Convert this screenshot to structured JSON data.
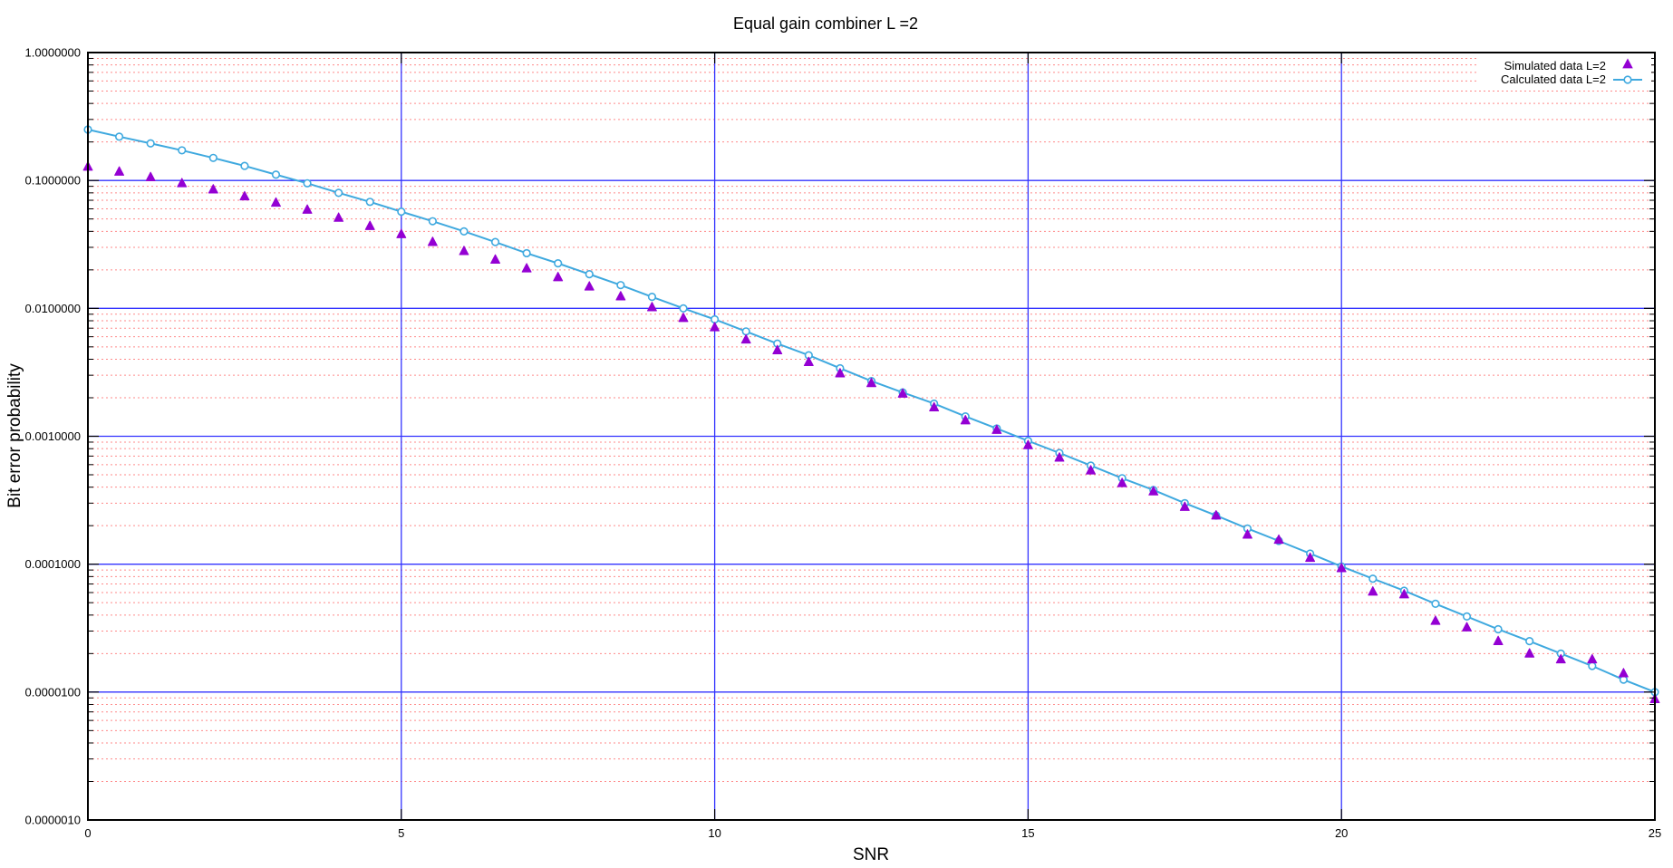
{
  "chart_data": {
    "type": "line",
    "title": "Equal gain combiner L =2",
    "xlabel": "SNR",
    "ylabel": "Bit error probability",
    "xlim": [
      0,
      25
    ],
    "ylim": [
      1e-06,
      1
    ],
    "y_scale": "log",
    "grid": true,
    "legend_position": "top-right",
    "x_ticks": [
      "0",
      "5",
      "10",
      "15",
      "20",
      "25"
    ],
    "y_ticks": [
      "1.0000000",
      "0.1000000",
      "0.0100000",
      "0.0010000",
      "0.0001000",
      "0.0000100",
      "0.0000010"
    ],
    "colors": {
      "major_grid": "#3333ff",
      "minor_grid": "#ff8a8a",
      "simulated": "#9400d3",
      "calculated": "#3fa9df"
    },
    "x": [
      0,
      0.5,
      1,
      1.5,
      2,
      2.5,
      3,
      3.5,
      4,
      4.5,
      5,
      5.5,
      6,
      6.5,
      7,
      7.5,
      8,
      8.5,
      9,
      9.5,
      10,
      10.5,
      11,
      11.5,
      12,
      12.5,
      13,
      13.5,
      14,
      14.5,
      15,
      15.5,
      16,
      16.5,
      17,
      17.5,
      18,
      18.5,
      19,
      19.5,
      20,
      20.5,
      21,
      21.5,
      22,
      22.5,
      23,
      23.5,
      24,
      24.5,
      25
    ],
    "series": [
      {
        "name": "Simulated data L=2",
        "marker": "triangle",
        "values": [
          0.128,
          0.117,
          0.106,
          0.095,
          0.085,
          0.075,
          0.067,
          0.059,
          0.051,
          0.044,
          0.038,
          0.033,
          0.028,
          0.024,
          0.0205,
          0.0175,
          0.0148,
          0.0124,
          0.0102,
          0.0084,
          0.0071,
          0.0057,
          0.0047,
          0.0038,
          0.0031,
          0.0026,
          0.00215,
          0.00168,
          0.00133,
          0.00112,
          0.00085,
          0.00068,
          0.00054,
          0.00043,
          0.00037,
          0.00028,
          0.00024,
          0.00017,
          0.000155,
          0.000112,
          9.3e-05,
          6.1e-05,
          5.8e-05,
          3.6e-05,
          3.2e-05,
          2.5e-05,
          2e-05,
          1.8e-05,
          1.8e-05,
          1.4e-05,
          8.8e-06
        ]
      },
      {
        "name": "Calculated data L=2",
        "marker": "circle-line",
        "values": [
          0.25,
          0.22,
          0.195,
          0.172,
          0.15,
          0.13,
          0.111,
          0.095,
          0.08,
          0.068,
          0.057,
          0.048,
          0.04,
          0.033,
          0.027,
          0.0225,
          0.0185,
          0.0152,
          0.0123,
          0.01,
          0.0082,
          0.0066,
          0.0053,
          0.0043,
          0.0034,
          0.0027,
          0.0022,
          0.0018,
          0.00143,
          0.00115,
          0.00092,
          0.00074,
          0.00059,
          0.00047,
          0.00038,
          0.0003,
          0.00024,
          0.00019,
          0.000152,
          0.000121,
          9.6e-05,
          7.7e-05,
          6.2e-05,
          4.9e-05,
          3.9e-05,
          3.1e-05,
          2.5e-05,
          2e-05,
          1.6e-05,
          1.25e-05,
          1e-05
        ]
      }
    ]
  }
}
